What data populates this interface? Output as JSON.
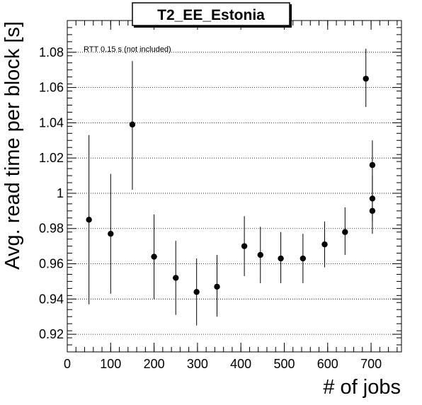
{
  "chart_data": {
    "type": "scatter",
    "title": "T2_EE_Estonia",
    "xlabel": "# of jobs",
    "ylabel": "Avg. read time per block [s]",
    "annotation": "RTT 0.15 s (not included)",
    "xlim": [
      0,
      770
    ],
    "ylim": [
      0.91,
      1.098
    ],
    "x_ticks": [
      "0",
      "100",
      "200",
      "300",
      "400",
      "500",
      "600",
      "700"
    ],
    "x_tick_values": [
      0,
      100,
      200,
      300,
      400,
      500,
      600,
      700
    ],
    "y_ticks": [
      "0.92",
      "0.94",
      "0.96",
      "0.98",
      "1",
      "1.02",
      "1.04",
      "1.06",
      "1.08"
    ],
    "y_tick_values": [
      0.92,
      0.94,
      0.96,
      0.98,
      1.0,
      1.02,
      1.04,
      1.06,
      1.08
    ],
    "grid": "horizontal dotted",
    "series": [
      {
        "points": [
          {
            "x": 50,
            "y": 0.985,
            "err_low": 0.937,
            "err_high": 1.033
          },
          {
            "x": 100,
            "y": 0.977,
            "err_low": 0.943,
            "err_high": 1.011
          },
          {
            "x": 150,
            "y": 1.039,
            "err_low": 1.002,
            "err_high": 1.075
          },
          {
            "x": 200,
            "y": 0.964,
            "err_low": 0.94,
            "err_high": 0.988
          },
          {
            "x": 250,
            "y": 0.952,
            "err_low": 0.931,
            "err_high": 0.973
          },
          {
            "x": 298,
            "y": 0.944,
            "err_low": 0.925,
            "err_high": 0.963
          },
          {
            "x": 345,
            "y": 0.947,
            "err_low": 0.93,
            "err_high": 0.965
          },
          {
            "x": 408,
            "y": 0.97,
            "err_low": 0.953,
            "err_high": 0.987
          },
          {
            "x": 445,
            "y": 0.965,
            "err_low": 0.949,
            "err_high": 0.981
          },
          {
            "x": 492,
            "y": 0.963,
            "err_low": 0.949,
            "err_high": 0.978
          },
          {
            "x": 543,
            "y": 0.963,
            "err_low": 0.949,
            "err_high": 0.977
          },
          {
            "x": 593,
            "y": 0.971,
            "err_low": 0.958,
            "err_high": 0.984
          },
          {
            "x": 640,
            "y": 0.978,
            "err_low": 0.965,
            "err_high": 0.992
          },
          {
            "x": 688,
            "y": 1.065,
            "err_low": 1.049,
            "err_high": 1.082
          },
          {
            "x": 703,
            "y": 1.016,
            "err_low": 1.002,
            "err_high": 1.03
          },
          {
            "x": 703,
            "y": 0.997,
            "err_low": 0.984,
            "err_high": 1.01
          },
          {
            "x": 703,
            "y": 0.99,
            "err_low": 0.977,
            "err_high": 1.003
          }
        ]
      }
    ]
  }
}
